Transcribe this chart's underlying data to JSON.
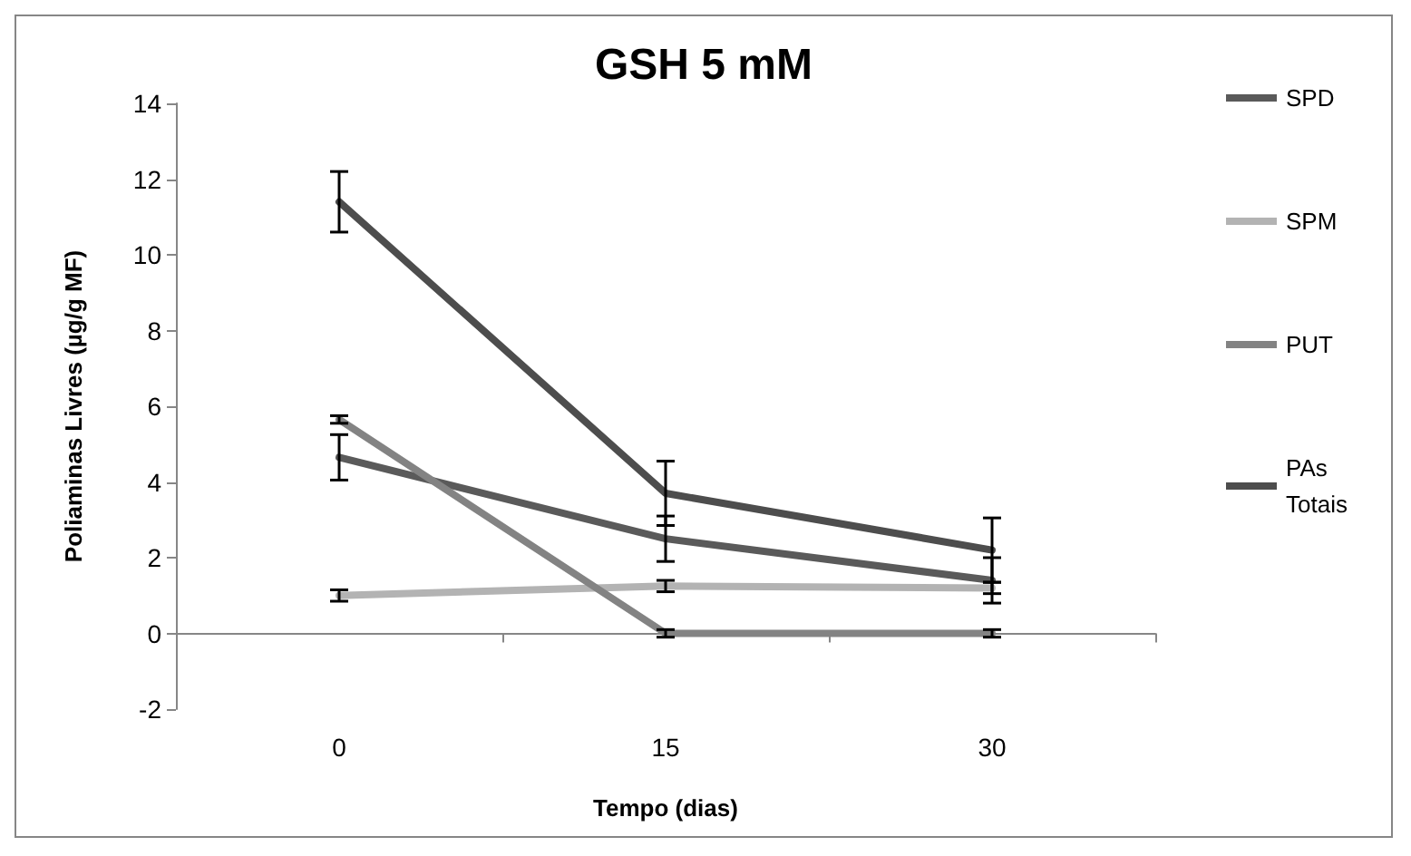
{
  "chart_data": {
    "type": "line",
    "title": "GSH 5 mM",
    "xlabel": "Tempo (dias)",
    "ylabel": "Poliaminas Livres (µg/g MF)",
    "categories": [
      "0",
      "15",
      "30"
    ],
    "series": [
      {
        "name": "SPD",
        "color": "#5a5a5a",
        "values": [
          4.65,
          2.5,
          1.4
        ],
        "errors": [
          0.6,
          0.6,
          0.6
        ]
      },
      {
        "name": "SPM",
        "color": "#b3b3b3",
        "values": [
          1.0,
          1.25,
          1.2
        ],
        "errors": [
          0.15,
          0.15,
          0.15
        ]
      },
      {
        "name": "PUT",
        "color": "#838383",
        "values": [
          5.65,
          0,
          0
        ],
        "errors": [
          0.1,
          0.1,
          0.1
        ]
      },
      {
        "name": "PAs Totais",
        "color": "#4d4d4d",
        "values": [
          11.4,
          3.7,
          2.2
        ],
        "errors": [
          0.8,
          0.85,
          0.85
        ]
      }
    ],
    "ylim": [
      -2,
      14
    ],
    "yticks": [
      -2,
      0,
      2,
      4,
      6,
      8,
      10,
      12,
      14
    ],
    "legend": "right",
    "marker": "none",
    "line_style": "solid"
  }
}
